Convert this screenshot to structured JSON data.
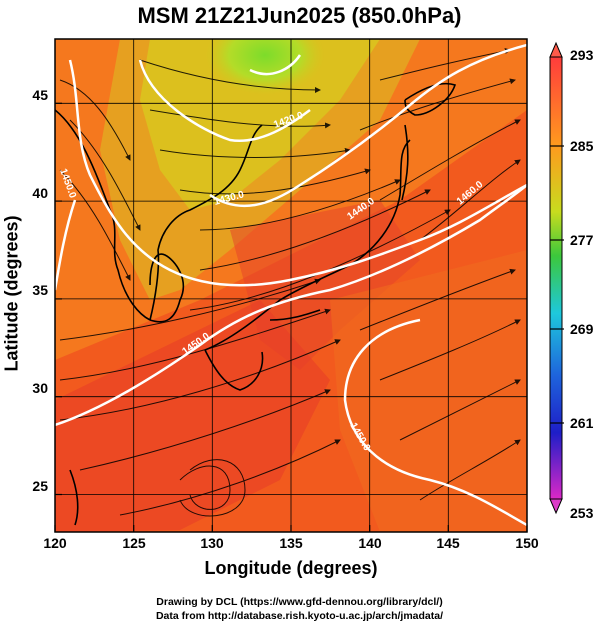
{
  "title": "MSM 21Z21Jun2025 (850.0hPa)",
  "x_axis": {
    "label": "Longitude (degrees)",
    "ticks": [
      "120",
      "125",
      "130",
      "135",
      "140",
      "145",
      "150"
    ],
    "range": [
      120,
      150
    ]
  },
  "y_axis": {
    "label": "Latitude  (degrees)",
    "ticks": [
      "25",
      "30",
      "35",
      "40",
      "45"
    ],
    "range": [
      22.4,
      47.6
    ]
  },
  "colorbar": {
    "ticks": [
      "293",
      "285",
      "277",
      "269",
      "261",
      "253"
    ],
    "range": [
      253,
      293
    ],
    "colors": [
      "#ff3c3c",
      "#ff8c1e",
      "#c8dc1e",
      "#3cc83c",
      "#1ec8dc",
      "#1e64dc",
      "#1e1ec8",
      "#dc28c8"
    ]
  },
  "contours": {
    "labels": [
      "1450.0",
      "1420.0",
      "1430.0",
      "1440.0",
      "1450.0",
      "1460.0",
      "1450.0",
      "1450.0",
      "1460.0"
    ]
  },
  "credits": {
    "line1": "Drawing by DCL (https://www.gfd-dennou.org/library/dcl/)",
    "line2": "Data from http://database.rish.kyoto-u.ac.jp/arch/jmadata/"
  }
}
